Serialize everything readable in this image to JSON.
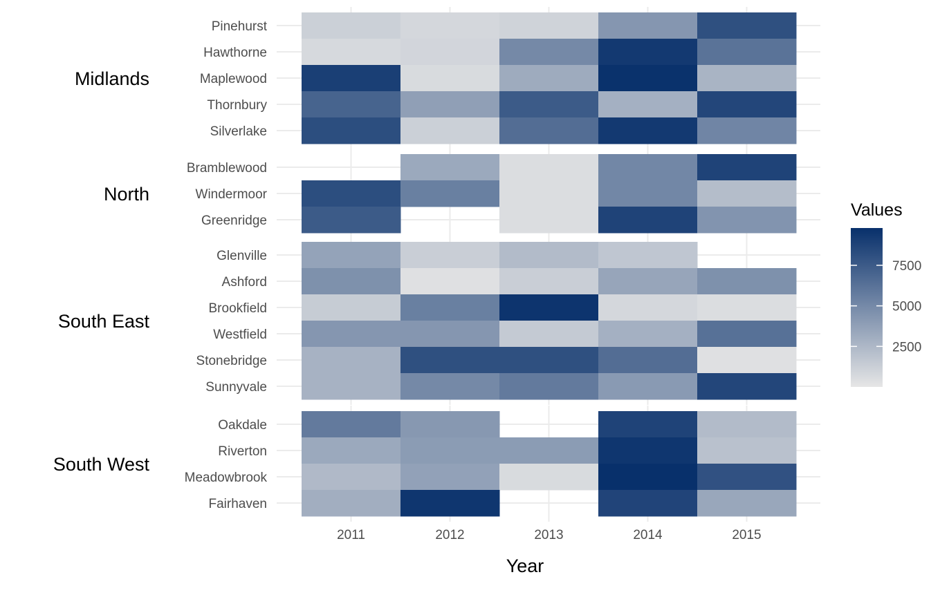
{
  "chart_data": {
    "type": "heatmap",
    "xlabel": "Year",
    "x": [
      "2011",
      "2012",
      "2013",
      "2014",
      "2015"
    ],
    "legend": {
      "title": "Values",
      "position": "right",
      "ticks": [
        2500,
        5000,
        7500
      ],
      "min": 0,
      "max": 9800,
      "color_low": "#e6e6e6",
      "color_high": "#08306b"
    },
    "grid": true,
    "groups": [
      {
        "name": "Midlands",
        "rows": [
          {
            "label": "Pinehurst",
            "values": [
              1200,
              800,
              1000,
              4300,
              8100
            ]
          },
          {
            "label": "Hawthorne",
            "values": [
              700,
              900,
              5000,
              9300,
              6200
            ]
          },
          {
            "label": "Maplewood",
            "values": [
              9000,
              600,
              3200,
              9700,
              2700
            ]
          },
          {
            "label": "Thornbury",
            "values": [
              7000,
              3800,
              7500,
              2900,
              8600
            ]
          },
          {
            "label": "Silverlake",
            "values": [
              8200,
              1200,
              6500,
              9300,
              5200
            ]
          }
        ]
      },
      {
        "name": "North",
        "rows": [
          {
            "label": "Bramblewood",
            "values": [
              null,
              3300,
              500,
              5100,
              8800
            ]
          },
          {
            "label": "Windermoor",
            "values": [
              8200,
              5500,
              500,
              5100,
              2200
            ]
          },
          {
            "label": "Greenridge",
            "values": [
              7500,
              null,
              500,
              8800,
              4400
            ]
          }
        ]
      },
      {
        "name": "South East",
        "rows": [
          {
            "label": "Glenville",
            "values": [
              3600,
              1300,
              2300,
              1700,
              null
            ]
          },
          {
            "label": "Ashford",
            "values": [
              4600,
              300,
              1300,
              3500,
              4600
            ]
          },
          {
            "label": "Brookfield",
            "values": [
              1400,
              5500,
              9600,
              800,
              500
            ]
          },
          {
            "label": "Westfield",
            "values": [
              4300,
              4300,
              1500,
              2900,
              6300
            ]
          },
          {
            "label": "Stonebridge",
            "values": [
              2800,
              8100,
              8100,
              6500,
              300
            ]
          },
          {
            "label": "Sunnyvale",
            "values": [
              2800,
              5000,
              5800,
              4100,
              8600
            ]
          }
        ]
      },
      {
        "name": "South West",
        "rows": [
          {
            "label": "Oakdale",
            "values": [
              5800,
              4200,
              null,
              8800,
              2300
            ]
          },
          {
            "label": "Riverton",
            "values": [
              3300,
              4000,
              4000,
              9500,
              2000
            ]
          },
          {
            "label": "Meadowbrook",
            "values": [
              2400,
              3700,
              600,
              9800,
              8000
            ]
          },
          {
            "label": "Fairhaven",
            "values": [
              3000,
              9500,
              null,
              8700,
              3400
            ]
          }
        ]
      }
    ]
  }
}
